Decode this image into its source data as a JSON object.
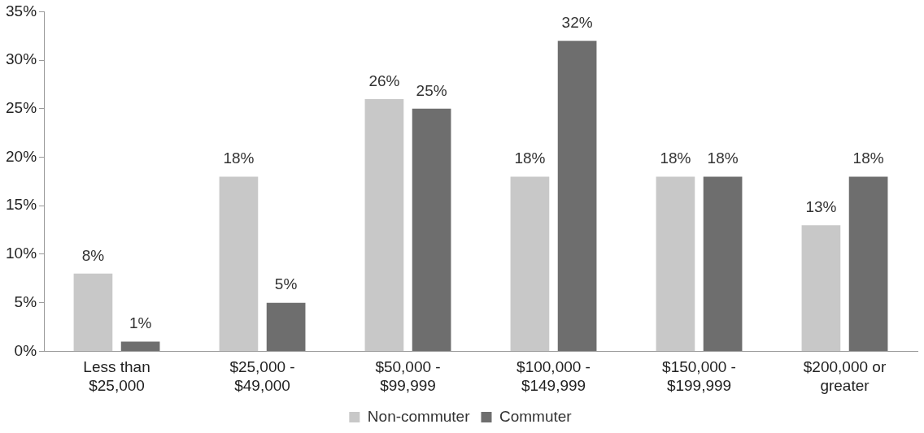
{
  "chart_data": {
    "type": "bar",
    "categories": [
      "Less than $25,000",
      "$25,000 - $49,000",
      "$50,000 - $99,999",
      "$100,000 - $149,999",
      "$150,000 - $199,999",
      "$200,000 or greater"
    ],
    "series": [
      {
        "name": "Non-commuter",
        "color": "#c8c8c8",
        "values": [
          8,
          18,
          26,
          18,
          18,
          13
        ],
        "value_labels": [
          "8%",
          "18%",
          "26%",
          "18%",
          "18%",
          "13%"
        ]
      },
      {
        "name": "Commuter",
        "color": "#6e6e6e",
        "values": [
          1,
          5,
          25,
          32,
          18,
          18
        ],
        "value_labels": [
          "1%",
          "5%",
          "25%",
          "32%",
          "18%",
          "18%"
        ]
      }
    ],
    "ylim": [
      0,
      35
    ],
    "yticks": [
      {
        "value": 0,
        "label": "0%"
      },
      {
        "value": 5,
        "label": "5%"
      },
      {
        "value": 10,
        "label": "10%"
      },
      {
        "value": 15,
        "label": "15%"
      },
      {
        "value": 20,
        "label": "20%"
      },
      {
        "value": 25,
        "label": "25%"
      },
      {
        "value": 30,
        "label": "30%"
      },
      {
        "value": 35,
        "label": "35%"
      }
    ],
    "grid": false,
    "legend": "bottom"
  }
}
